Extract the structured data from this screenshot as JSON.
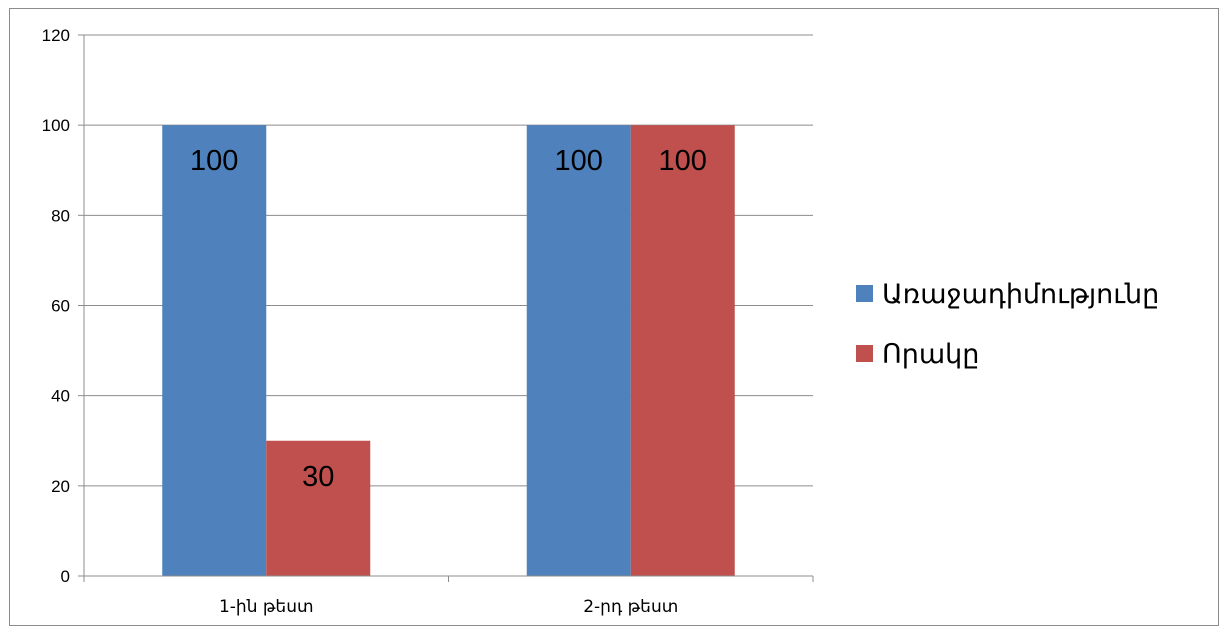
{
  "chart_data": {
    "type": "bar",
    "categories": [
      "1-ին թեստ",
      "2-րդ թեստ"
    ],
    "series": [
      {
        "name": "Առաջադիմությունը",
        "values": [
          100,
          100
        ],
        "color": "#4f81bd"
      },
      {
        "name": "Որակը",
        "values": [
          30,
          100
        ],
        "color": "#c0504d"
      }
    ],
    "ylim": [
      0,
      120
    ],
    "yticks": [
      0,
      20,
      40,
      60,
      80,
      100,
      120
    ],
    "grid": true,
    "legend": "right",
    "data_labels": true,
    "title": "",
    "xlabel": "",
    "ylabel": ""
  }
}
